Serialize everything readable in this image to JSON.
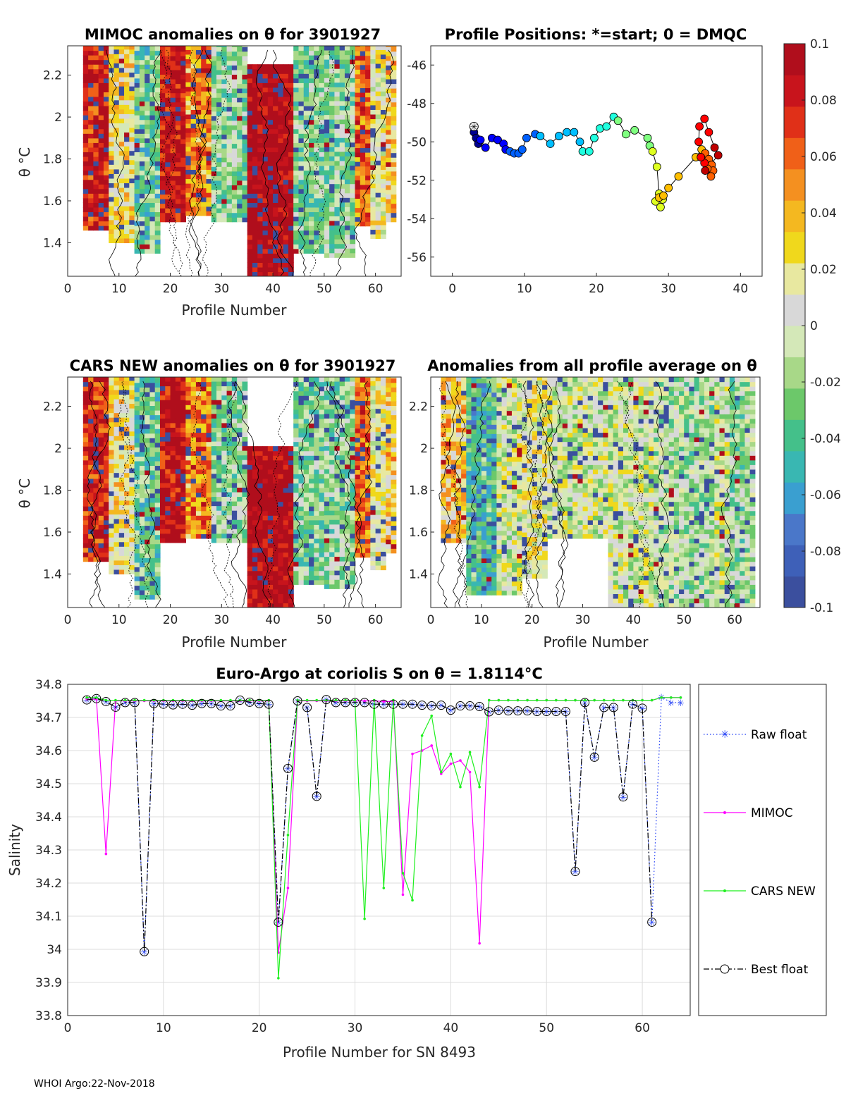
{
  "footer": "WHOI Argo:22-Nov-2018",
  "colorbar": {
    "min": -0.1,
    "max": 0.1,
    "ticks": [
      "0.1",
      "0.08",
      "0.06",
      "0.04",
      "0.02",
      "0",
      "-0.02",
      "-0.04",
      "-0.06",
      "-0.08",
      "-0.1"
    ],
    "colors": [
      "#3b4f9e",
      "#3e60b8",
      "#4a77c9",
      "#3a9fd0",
      "#39b7b2",
      "#44c08a",
      "#6cc86a",
      "#a8d888",
      "#d4e8b8",
      "#d8d8d8",
      "#e8e8a0",
      "#f0d81c",
      "#f4b820",
      "#f49020",
      "#f06018",
      "#e03018",
      "#c8141c",
      "#b00e1c"
    ]
  },
  "panel_mimoc": {
    "title": "MIMOC anomalies on θ  for 3901927",
    "xlabel": "Profile Number",
    "ylabel": "θ °C",
    "xticks": [
      "0",
      "10",
      "20",
      "30",
      "40",
      "50",
      "60"
    ],
    "yticks": [
      "2.2",
      "2",
      "1.8",
      "1.6",
      "1.4"
    ]
  },
  "panel_positions": {
    "title": "Profile Positions: *=start; 0 = DMQC",
    "xticks": [
      "0",
      "10",
      "20",
      "30",
      "40"
    ],
    "yticks": [
      "-46",
      "-48",
      "-50",
      "-52",
      "-54",
      "-56"
    ]
  },
  "panel_cars": {
    "title": "CARS NEW anomalies on θ for 3901927",
    "xlabel": "Profile Number",
    "ylabel": "θ °C",
    "xticks": [
      "0",
      "10",
      "20",
      "30",
      "40",
      "50",
      "60"
    ],
    "yticks": [
      "2.2",
      "2",
      "1.8",
      "1.6",
      "1.4"
    ]
  },
  "panel_allavg": {
    "title": "Anomalies from all profile average on θ",
    "xlabel": "Profile Number",
    "xticks": [
      "0",
      "10",
      "20",
      "30",
      "40",
      "50",
      "60"
    ],
    "yticks": [
      "2.2",
      "2",
      "1.8",
      "1.6",
      "1.4"
    ]
  },
  "chart_data": [
    {
      "type": "heatmap",
      "title": "MIMOC anomalies on θ  for 3901927",
      "xlabel": "Profile Number",
      "ylabel": "θ °C",
      "xlim": [
        0,
        65
      ],
      "ylim": [
        1.24,
        2.34
      ],
      "clim": [
        -0.1,
        0.1
      ],
      "profile_columns": {
        "x_ranges": [
          [
            3,
            8
          ],
          [
            8,
            13
          ],
          [
            13,
            18
          ],
          [
            18,
            23
          ],
          [
            23,
            28
          ],
          [
            28,
            35
          ],
          [
            35,
            44
          ],
          [
            44,
            50
          ],
          [
            50,
            56
          ],
          [
            56,
            59
          ],
          [
            59,
            62
          ],
          [
            62,
            64
          ]
        ],
        "top": [
          2.34,
          2.34,
          2.34,
          2.34,
          2.34,
          2.34,
          2.25,
          2.34,
          2.34,
          2.34,
          2.34,
          2.34
        ],
        "bottom": [
          1.46,
          1.4,
          1.35,
          1.5,
          1.53,
          1.5,
          1.24,
          1.35,
          1.33,
          1.48,
          1.42,
          1.5
        ],
        "mean_anomaly": [
          0.08,
          0.02,
          -0.03,
          0.09,
          0.05,
          -0.02,
          0.1,
          -0.025,
          -0.02,
          0.06,
          0.01,
          0.03
        ]
      }
    },
    {
      "type": "scatter",
      "title": "Profile Positions: *=start; 0 = DMQC",
      "xlim": [
        -3,
        43
      ],
      "ylim": [
        -57,
        -45
      ],
      "start_marker": [
        3,
        -49.2
      ],
      "x": [
        3,
        3.3,
        3.6,
        3.9,
        4.6,
        5.5,
        6.3,
        7.1,
        7.4,
        8.0,
        8.6,
        9.2,
        9.7,
        10.3,
        11.5,
        12.2,
        13.6,
        14.8,
        15.9,
        16.9,
        17.7,
        18.1,
        19.0,
        19.7,
        20.5,
        21.4,
        22.4,
        23.0,
        24.1,
        25.3,
        27.1,
        27.4,
        27.8,
        28.4,
        28.7,
        29.2,
        28.9,
        28.2,
        28.7,
        29.3,
        30.0,
        31.4,
        33.8,
        34.6,
        35.1,
        35.6,
        36.0,
        36.2,
        35.9,
        35.4,
        35.0,
        34.5,
        34.2,
        34.3,
        35.0,
        35.6,
        36.4,
        36.9,
        35.1
      ],
      "y": [
        -49.5,
        -49.8,
        -50.1,
        -49.9,
        -50.3,
        -49.8,
        -49.9,
        -50.1,
        -50.4,
        -50.5,
        -50.6,
        -50.6,
        -50.4,
        -49.8,
        -49.6,
        -49.7,
        -50.1,
        -49.7,
        -49.5,
        -49.5,
        -50.0,
        -50.5,
        -50.5,
        -49.8,
        -49.3,
        -49.2,
        -48.7,
        -48.9,
        -49.6,
        -49.4,
        -49.8,
        -50.2,
        -50.5,
        -51.3,
        -52.7,
        -53.0,
        -53.4,
        -53.1,
        -52.9,
        -52.8,
        -52.4,
        -51.8,
        -50.8,
        -50.4,
        -50.6,
        -50.9,
        -51.2,
        -51.5,
        -51.8,
        -51.4,
        -51.1,
        -50.8,
        -50.0,
        -49.2,
        -48.8,
        -49.5,
        -50.3,
        -50.7,
        -51.5
      ],
      "colorby": "profile number"
    },
    {
      "type": "heatmap",
      "title": "CARS NEW anomalies on θ for 3901927",
      "xlabel": "Profile Number",
      "ylabel": "θ °C",
      "xlim": [
        0,
        65
      ],
      "ylim": [
        1.24,
        2.34
      ],
      "clim": [
        -0.1,
        0.1
      ],
      "profile_columns": {
        "x_ranges": [
          [
            3,
            8
          ],
          [
            8,
            13
          ],
          [
            13,
            18
          ],
          [
            18,
            23
          ],
          [
            23,
            28
          ],
          [
            28,
            35
          ],
          [
            35,
            44
          ],
          [
            44,
            50
          ],
          [
            50,
            56
          ],
          [
            56,
            59
          ],
          [
            59,
            62
          ],
          [
            62,
            64
          ]
        ],
        "top": [
          2.34,
          2.34,
          2.34,
          2.34,
          2.34,
          2.34,
          2.0,
          2.34,
          2.34,
          2.34,
          2.34,
          2.34
        ],
        "bottom": [
          1.46,
          1.4,
          1.28,
          1.55,
          1.57,
          1.55,
          1.24,
          1.35,
          1.33,
          1.48,
          1.42,
          1.5
        ],
        "mean_anomaly": [
          0.08,
          0.02,
          -0.03,
          0.09,
          0.05,
          -0.02,
          0.1,
          -0.025,
          -0.02,
          0.06,
          0.01,
          0.03
        ]
      }
    },
    {
      "type": "heatmap",
      "title": "Anomalies from all profile average on θ",
      "xlabel": "Profile Number",
      "xlim": [
        0,
        65
      ],
      "ylim": [
        1.24,
        2.34
      ],
      "clim": [
        -0.1,
        0.1
      ],
      "profile_columns": {
        "x_ranges": [
          [
            2,
            7
          ],
          [
            7,
            13
          ],
          [
            13,
            18
          ],
          [
            18,
            23
          ],
          [
            23,
            28
          ],
          [
            28,
            35
          ],
          [
            35,
            44
          ],
          [
            44,
            50
          ],
          [
            50,
            56
          ],
          [
            56,
            59
          ],
          [
            59,
            62
          ],
          [
            62,
            64
          ]
        ],
        "top": [
          2.34,
          2.34,
          2.34,
          2.34,
          2.34,
          2.34,
          2.34,
          2.34,
          2.34,
          2.34,
          2.34,
          2.34
        ],
        "bottom": [
          1.55,
          1.3,
          1.3,
          1.38,
          1.57,
          1.57,
          1.24,
          1.24,
          1.24,
          1.24,
          1.24,
          1.24
        ],
        "mean_anomaly": [
          0.03,
          -0.04,
          0.0,
          0.01,
          0.0,
          0.0,
          0.0,
          -0.01,
          -0.015,
          0.0,
          -0.02,
          -0.01
        ]
      }
    },
    {
      "type": "line",
      "title": "Euro-Argo at coriolis S on θ = 1.8114°C",
      "xlabel": "Profile Number for SN 8493",
      "ylabel": "Salinity",
      "xlim": [
        0,
        65
      ],
      "ylim": [
        33.8,
        34.8
      ],
      "xticks": [
        "0",
        "10",
        "20",
        "30",
        "40",
        "50",
        "60"
      ],
      "yticks": [
        "34.8",
        "34.7",
        "34.6",
        "34.5",
        "34.4",
        "34.3",
        "34.2",
        "34.1",
        "34",
        "33.9",
        "33.8"
      ],
      "legend_position": "right",
      "series": [
        {
          "name": "Raw float",
          "color": "#1f3cf5",
          "x": [
            2,
            3,
            4,
            5,
            6,
            7,
            8,
            9,
            10,
            11,
            12,
            13,
            14,
            15,
            16,
            17,
            18,
            19,
            20,
            21,
            22,
            23,
            24,
            25,
            26,
            27,
            28,
            29,
            30,
            31,
            32,
            33,
            34,
            35,
            36,
            37,
            38,
            39,
            40,
            41,
            42,
            43,
            44,
            45,
            46,
            47,
            48,
            49,
            50,
            51,
            52,
            53,
            54,
            55,
            56,
            57,
            58,
            59,
            60,
            61,
            62,
            63,
            64
          ],
          "y": [
            34.753,
            34.757,
            34.748,
            34.731,
            34.745,
            34.745,
            33.993,
            34.742,
            34.74,
            34.738,
            34.74,
            34.737,
            34.742,
            34.742,
            34.735,
            34.735,
            34.752,
            34.746,
            34.742,
            34.74,
            34.082,
            34.546,
            34.75,
            34.73,
            34.462,
            34.754,
            34.745,
            34.745,
            34.745,
            34.745,
            34.74,
            34.74,
            34.74,
            34.74,
            34.74,
            34.737,
            34.735,
            34.737,
            34.722,
            34.735,
            34.735,
            34.733,
            34.717,
            34.722,
            34.72,
            34.72,
            34.72,
            34.718,
            34.718,
            34.718,
            34.718,
            34.235,
            34.745,
            34.58,
            34.73,
            34.73,
            34.46,
            34.74,
            34.728,
            34.082,
            34.762,
            34.745,
            34.745
          ]
        },
        {
          "name": "MIMOC",
          "color": "#ff00ff",
          "x": [
            2,
            3,
            4,
            5,
            6,
            7,
            8,
            9,
            10,
            11,
            12,
            13,
            14,
            15,
            16,
            17,
            18,
            19,
            20,
            21,
            22,
            23,
            24,
            25,
            26,
            27,
            28,
            29,
            30,
            31,
            32,
            33,
            34,
            35,
            36,
            37,
            38,
            39,
            40,
            41,
            42,
            43,
            44,
            45,
            46,
            47,
            48,
            49,
            50,
            51,
            52,
            53,
            54,
            55,
            56,
            57,
            58,
            59,
            60,
            61,
            62,
            63,
            64
          ],
          "y": [
            34.755,
            34.755,
            34.288,
            34.75,
            34.75,
            34.75,
            34.75,
            34.75,
            34.75,
            34.75,
            34.75,
            34.75,
            34.75,
            34.75,
            34.75,
            34.75,
            34.75,
            34.75,
            34.75,
            34.75,
            33.99,
            34.185,
            34.75,
            34.75,
            34.75,
            34.75,
            34.75,
            34.75,
            34.75,
            34.75,
            34.75,
            34.748,
            34.748,
            34.165,
            34.59,
            34.6,
            34.615,
            34.53,
            34.56,
            34.57,
            34.535,
            34.018,
            34.752,
            34.752,
            34.752,
            34.752,
            34.752,
            34.752,
            34.752,
            34.752,
            34.752,
            34.752,
            34.752,
            34.752,
            34.752,
            34.752,
            34.752,
            34.752,
            34.752,
            34.752,
            34.76,
            34.76,
            34.76
          ]
        },
        {
          "name": "CARS NEW",
          "color": "#1ff01f",
          "x": [
            2,
            3,
            4,
            5,
            6,
            7,
            8,
            9,
            10,
            11,
            12,
            13,
            14,
            15,
            16,
            17,
            18,
            19,
            20,
            21,
            22,
            23,
            24,
            25,
            26,
            27,
            28,
            29,
            30,
            31,
            32,
            33,
            34,
            35,
            36,
            37,
            38,
            39,
            40,
            41,
            42,
            43,
            44,
            45,
            46,
            47,
            48,
            49,
            50,
            51,
            52,
            53,
            54,
            55,
            56,
            57,
            58,
            59,
            60,
            61,
            62,
            63,
            64
          ],
          "y": [
            34.76,
            34.76,
            34.752,
            34.752,
            34.752,
            34.752,
            34.752,
            34.752,
            34.752,
            34.752,
            34.752,
            34.752,
            34.752,
            34.752,
            34.752,
            34.752,
            34.752,
            34.752,
            34.752,
            34.752,
            33.913,
            34.345,
            34.752,
            34.752,
            34.752,
            34.752,
            34.752,
            34.752,
            34.752,
            34.092,
            34.752,
            34.185,
            34.752,
            34.23,
            34.148,
            34.645,
            34.705,
            34.535,
            34.59,
            34.49,
            34.595,
            34.49,
            34.752,
            34.752,
            34.752,
            34.752,
            34.752,
            34.752,
            34.752,
            34.752,
            34.752,
            34.752,
            34.752,
            34.752,
            34.752,
            34.752,
            34.752,
            34.752,
            34.752,
            34.752,
            34.76,
            34.76,
            34.76
          ]
        },
        {
          "name": "Best float",
          "color": "#000000",
          "x": [
            2,
            3,
            4,
            5,
            6,
            7,
            8,
            9,
            10,
            11,
            12,
            13,
            14,
            15,
            16,
            17,
            18,
            19,
            20,
            21,
            22,
            23,
            24,
            25,
            26,
            27,
            28,
            29,
            30,
            31,
            32,
            33,
            34,
            35,
            36,
            37,
            38,
            39,
            40,
            41,
            42,
            43,
            44,
            45,
            46,
            47,
            48,
            49,
            50,
            51,
            52,
            53,
            54,
            55,
            56,
            57,
            58,
            59,
            60,
            61
          ],
          "y": [
            34.753,
            34.757,
            34.748,
            34.731,
            34.745,
            34.745,
            33.993,
            34.742,
            34.74,
            34.738,
            34.74,
            34.737,
            34.742,
            34.742,
            34.735,
            34.735,
            34.752,
            34.746,
            34.742,
            34.74,
            34.082,
            34.546,
            34.75,
            34.73,
            34.462,
            34.754,
            34.745,
            34.745,
            34.745,
            34.745,
            34.74,
            34.74,
            34.74,
            34.74,
            34.74,
            34.737,
            34.735,
            34.737,
            34.722,
            34.735,
            34.735,
            34.733,
            34.717,
            34.722,
            34.72,
            34.72,
            34.72,
            34.718,
            34.718,
            34.718,
            34.718,
            34.235,
            34.745,
            34.58,
            34.73,
            34.73,
            34.46,
            34.74,
            34.728,
            34.082
          ]
        }
      ]
    }
  ]
}
